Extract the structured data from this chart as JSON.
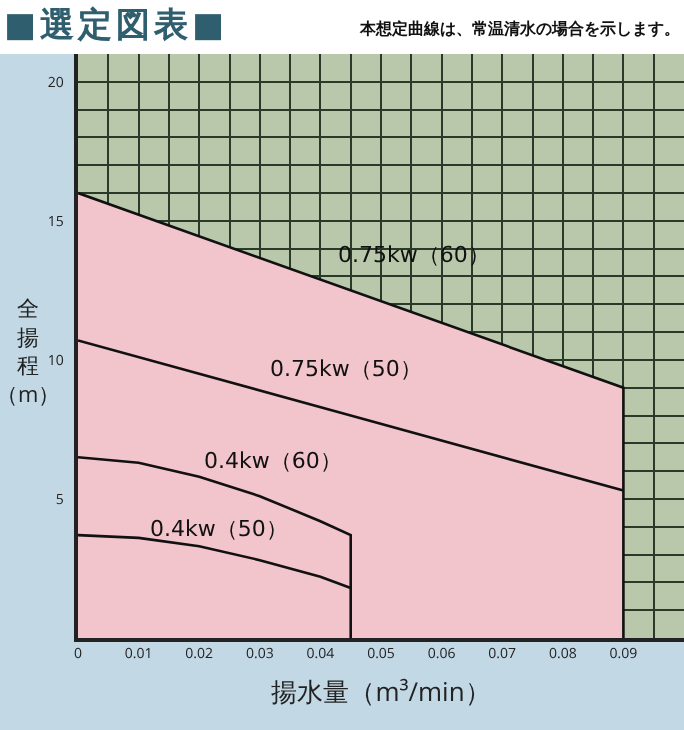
{
  "chart_data": {
    "type": "line",
    "title": "■選定図表■",
    "subtitle": "本想定曲線は、常温清水の場合を示します。",
    "xlabel": "揚水量（m³/min）",
    "ylabel": "全揚程（m）",
    "xlim": [
      0,
      0.1
    ],
    "ylim": [
      0,
      21
    ],
    "xticks": [
      0,
      0.01,
      0.02,
      0.03,
      0.04,
      0.05,
      0.06,
      0.07,
      0.08,
      0.09
    ],
    "yticks": [
      5,
      10,
      15,
      20
    ],
    "bands": [
      {
        "axis": "x",
        "from": 0,
        "to": 0.1,
        "color": "#b9c8aa"
      }
    ],
    "grid": true,
    "legend": false,
    "marker": "none",
    "line_style": "solid",
    "series": [
      {
        "name": "0.75kw（60）",
        "type": "area",
        "color": "#f2c4cc",
        "x": [
          0,
          0.09,
          0.09
        ],
        "values": [
          16,
          9,
          0
        ]
      },
      {
        "name": "0.75kw（50）",
        "color": "#111111",
        "x": [
          0,
          0.045,
          0.09
        ],
        "values": [
          10.7,
          8,
          5.3
        ]
      },
      {
        "name": "0.4kw（60）",
        "color": "#111111",
        "x": [
          0,
          0.01,
          0.02,
          0.03,
          0.04,
          0.045,
          0.045
        ],
        "values": [
          6.5,
          6.3,
          5.8,
          5.1,
          4.2,
          3.7,
          0
        ]
      },
      {
        "name": "0.4kw（50）",
        "color": "#111111",
        "x": [
          0,
          0.01,
          0.02,
          0.03,
          0.04,
          0.045
        ],
        "values": [
          3.7,
          3.6,
          3.3,
          2.8,
          2.2,
          1.8
        ]
      }
    ]
  }
}
